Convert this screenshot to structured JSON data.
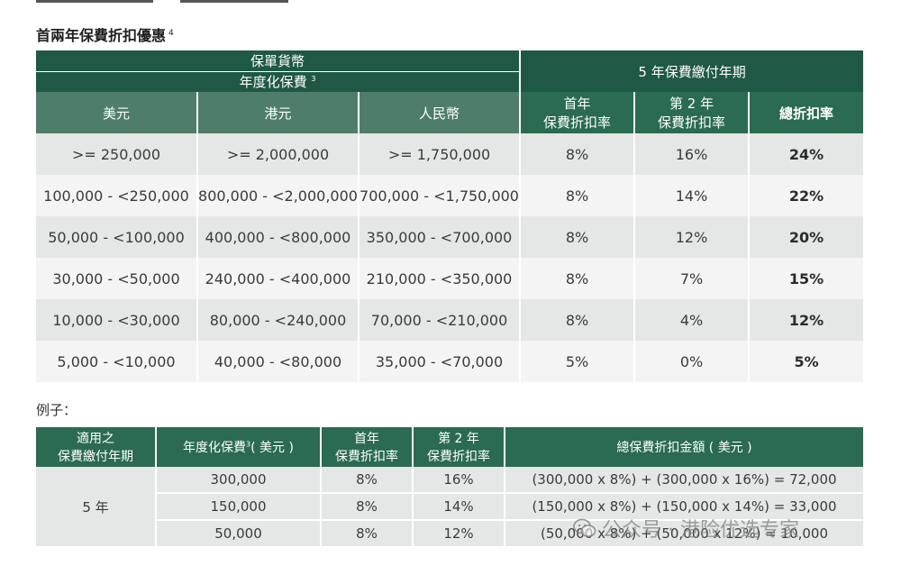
{
  "section_title": "首兩年保費折扣優惠",
  "section_footnote": "4",
  "main_table": {
    "h_policy_currency": "保單貨幣",
    "h_annualized_premium": "年度化保費",
    "h_annualized_footnote": "3",
    "h_payment_term": "5 年保費繳付年期",
    "col_usd": "美元",
    "col_hkd": "港元",
    "col_rmb": "人民幣",
    "col_first_year_l1": "首年",
    "col_first_year_l2": "保費折扣率",
    "col_second_year_l1": "第 2 年",
    "col_second_year_l2": "保費折扣率",
    "col_total": "總折扣率",
    "rows": [
      {
        "usd": ">= 250,000",
        "hkd": ">= 2,000,000",
        "rmb": ">= 1,750,000",
        "y1": "8%",
        "y2": "16%",
        "total": "24%"
      },
      {
        "usd": "100,000 - <250,000",
        "hkd": "800,000 - <2,000,000",
        "rmb": "700,000 - <1,750,000",
        "y1": "8%",
        "y2": "14%",
        "total": "22%"
      },
      {
        "usd": "50,000 - <100,000",
        "hkd": "400,000 - <800,000",
        "rmb": "350,000 - <700,000",
        "y1": "8%",
        "y2": "12%",
        "total": "20%"
      },
      {
        "usd": "30,000 - <50,000",
        "hkd": "240,000 - <400,000",
        "rmb": "210,000 - <350,000",
        "y1": "8%",
        "y2": "7%",
        "total": "15%"
      },
      {
        "usd": "10,000 - <30,000",
        "hkd": "80,000 - <240,000",
        "rmb": "70,000 - <210,000",
        "y1": "8%",
        "y2": "4%",
        "total": "12%"
      },
      {
        "usd": "5,000 - <10,000",
        "hkd": "40,000 - <80,000",
        "rmb": "35,000 - <70,000",
        "y1": "5%",
        "y2": "0%",
        "total": "5%"
      }
    ]
  },
  "example_label": "例子：",
  "example_table": {
    "h_term_l1": "適用之",
    "h_term_l2": "保費繳付年期",
    "h_premium": "年度化保費",
    "h_premium_footnote": "3",
    "h_premium_unit": "( 美元 )",
    "h_first_l1": "首年",
    "h_first_l2": "保費折扣率",
    "h_second_l1": "第 2 年",
    "h_second_l2": "保費折扣率",
    "h_total": "總保費折扣金額 ( 美元 )",
    "term_value": "5 年",
    "rows": [
      {
        "premium": "300,000",
        "y1": "8%",
        "y2": "16%",
        "calc": "(300,000 x 8%) + (300,000 x 16%) = 72,000"
      },
      {
        "premium": "150,000",
        "y1": "8%",
        "y2": "14%",
        "calc": "(150,000 x 8%) + (150,000 x 14%) = 33,000"
      },
      {
        "premium": "50,000",
        "y1": "8%",
        "y2": "12%",
        "calc": "(50,000 x 8%) + (50,000 x 12%) = 10,000"
      }
    ]
  },
  "watermark": "公众号 · 港险优选专家"
}
